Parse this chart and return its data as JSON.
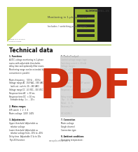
{
  "bg_color": "#ffffff",
  "header_green": "#c8d860",
  "header_title": "Monitoring in 1-phase mains",
  "header_subtitle": "Includes / switching power supply",
  "header_product_code": "SLIMM8806L.2S",
  "header_tag1": "POWER RAIL SYSTEM",
  "header_tag2": "Industrial design",
  "section_title": "Technical data",
  "pdf_text": "PDF",
  "pdf_color": "#cc2200",
  "pdf_bg": "#d0d0d0",
  "footer_url": "www.pilz-online.com",
  "separator_color": "#8ab020",
  "text_dark": "#222222",
  "text_gray": "#555555"
}
